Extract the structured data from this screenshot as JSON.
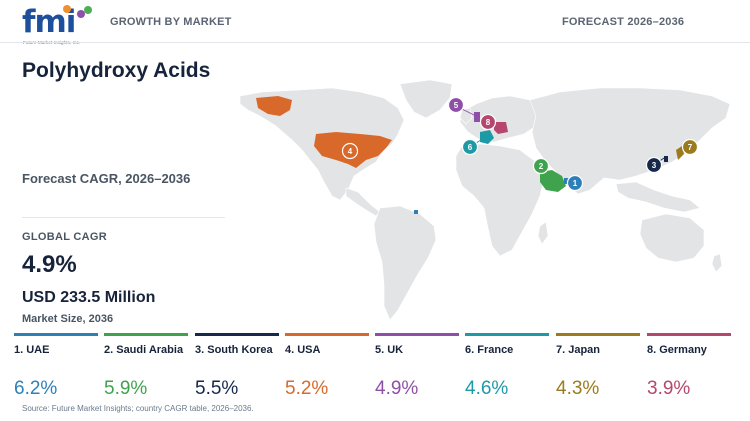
{
  "header": {
    "logo_text": "fmi",
    "logo_tagline": "Future Market Insights, Inc.",
    "left_label": "GROWTH BY MARKET",
    "right_label": "FORECAST 2026–2036"
  },
  "title": "Polyhydroxy Acids",
  "cagr_label": "Forecast CAGR, 2026–2036",
  "global": {
    "label": "GLOBAL CAGR",
    "value": "4.9%",
    "market_size": "USD 233.5 Million",
    "market_size_label": "Market Size, 2036"
  },
  "countries": [
    {
      "rank": "1",
      "name": "1. UAE",
      "cagr": "6.2%",
      "color": "#2e7fb8"
    },
    {
      "rank": "2",
      "name": "2. Saudi Arabia",
      "cagr": "5.9%",
      "color": "#3fa34d"
    },
    {
      "rank": "3",
      "name": "3. South Korea",
      "cagr": "5.5%",
      "color": "#16294a"
    },
    {
      "rank": "4",
      "name": "4. USA",
      "cagr": "5.2%",
      "color": "#d9692b"
    },
    {
      "rank": "5",
      "name": "5. UK",
      "cagr": "4.9%",
      "color": "#8e4fa8"
    },
    {
      "rank": "6",
      "name": "6. France",
      "cagr": "4.6%",
      "color": "#1d9aa6"
    },
    {
      "rank": "7",
      "name": "7. Japan",
      "cagr": "4.3%",
      "color": "#9c7a1e"
    },
    {
      "rank": "8",
      "name": "8. Germany",
      "cagr": "3.9%",
      "color": "#b5476e"
    }
  ],
  "source": "Source: Future Market Insights; country CAGR table, 2026–2036."
}
